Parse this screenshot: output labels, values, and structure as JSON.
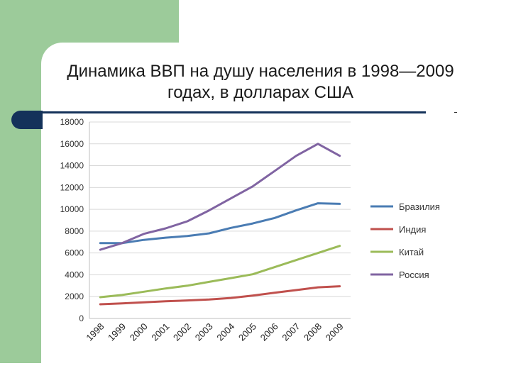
{
  "slide": {
    "title": "Динамика ВВП на душу населения в 1998—2009 годах, в долларах США"
  },
  "colors": {
    "brazil": "#4a7cb3",
    "india": "#c0504d",
    "china": "#9bbb59",
    "russia": "#8064a2",
    "accent_green": "#9ccb9a",
    "accent_navy": "#14325a"
  },
  "chart_data": {
    "type": "line",
    "title": "",
    "xlabel": "",
    "ylabel": "",
    "categories": [
      "1998",
      "1999",
      "2000",
      "2001",
      "2002",
      "2003",
      "2004",
      "2005",
      "2006",
      "2007",
      "2008",
      "2009"
    ],
    "yticks": [
      0,
      2000,
      4000,
      6000,
      8000,
      10000,
      12000,
      14000,
      16000,
      18000
    ],
    "ylim": [
      0,
      18000
    ],
    "grid": true,
    "legend": "right",
    "series": [
      {
        "name": "Бразилия",
        "color": "#4a7cb3",
        "values": [
          6900,
          6900,
          7200,
          7400,
          7550,
          7800,
          8300,
          8700,
          9200,
          9900,
          10550,
          10500
        ]
      },
      {
        "name": "Индия",
        "color": "#c0504d",
        "values": [
          1300,
          1380,
          1480,
          1570,
          1650,
          1740,
          1880,
          2100,
          2350,
          2600,
          2850,
          2950
        ]
      },
      {
        "name": "Китай",
        "color": "#9bbb59",
        "values": [
          1950,
          2150,
          2450,
          2750,
          3000,
          3350,
          3700,
          4050,
          4700,
          5350,
          6000,
          6650
        ]
      },
      {
        "name": "Россия",
        "color": "#8064a2",
        "values": [
          6300,
          6900,
          7750,
          8250,
          8900,
          9900,
          11000,
          12100,
          13500,
          14900,
          16000,
          14900
        ]
      }
    ]
  }
}
